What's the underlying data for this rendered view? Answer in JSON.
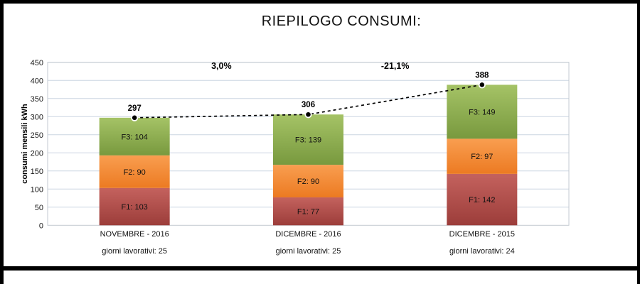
{
  "title": "RIEPILOGO CONSUMI:",
  "chart_data": {
    "type": "bar",
    "stacked": true,
    "title": "RIEPILOGO CONSUMI:",
    "ylabel": "consumi mensili kWh",
    "ylim": [
      0,
      450
    ],
    "ytick_step": 50,
    "grid": true,
    "legend": "none (labels inside segments)",
    "categories": [
      "NOVEMBRE - 2016",
      "DICEMBRE - 2016",
      "DICEMBRE - 2015"
    ],
    "category_sublabels": [
      "giorni lavorativi: 25",
      "giorni lavorativi: 25",
      "giorni lavorativi: 24"
    ],
    "series": [
      {
        "name": "F1",
        "values": [
          103,
          77,
          142
        ],
        "color": "#c0504d",
        "color_top": "#c4625e",
        "color_bottom": "#9c3d3a"
      },
      {
        "name": "F2",
        "values": [
          90,
          90,
          97
        ],
        "color": "#f79646",
        "color_top": "#f99e50",
        "color_bottom": "#ec7a22"
      },
      {
        "name": "F3",
        "values": [
          104,
          139,
          149
        ],
        "color": "#9bbb59",
        "color_top": "#a5c366",
        "color_bottom": "#78993e"
      }
    ],
    "segment_label_format": "{name}: {value}",
    "totals": [
      297,
      306,
      388
    ],
    "totals_line": {
      "type": "dashed",
      "color": "#000000",
      "marker": "black-circle-white-ring"
    },
    "change_labels": [
      "3,0%",
      "-21,1%"
    ],
    "style": {
      "grid_color": "#ccd6e2",
      "plot_border_color": "#c3cad1",
      "text_color": "#1a1a1a"
    }
  }
}
